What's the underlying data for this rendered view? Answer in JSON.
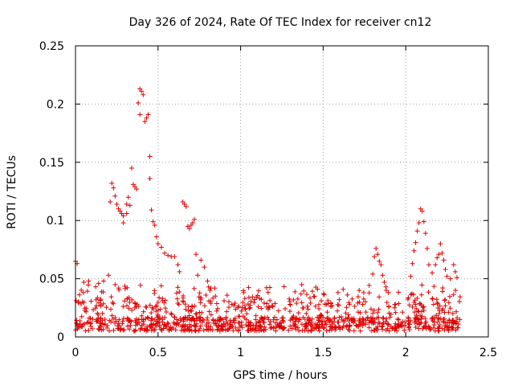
{
  "chart_data": {
    "type": "scatter",
    "title": "Day 326 of 2024, Rate Of TEC Index for receiver cn12",
    "xlabel": "GPS time / hours",
    "ylabel": "ROTI / TECUs",
    "xlim": [
      0,
      2.5
    ],
    "ylim": [
      0,
      0.25
    ],
    "xticks": [
      0,
      0.5,
      1,
      1.5,
      2,
      2.5
    ],
    "xtick_labels": [
      "0",
      "0.5",
      "1",
      "1.5",
      "2",
      "2.5"
    ],
    "yticks": [
      0,
      0.05,
      0.1,
      0.15,
      0.2,
      0.25
    ],
    "ytick_labels": [
      "0",
      "0.05",
      "0.1",
      "0.15",
      "0.2",
      "0.25"
    ],
    "grid": true,
    "marker": "+",
    "color": "#e00000",
    "series": [
      {
        "name": "roti",
        "x_range": [
          0,
          2.33
        ],
        "sample_count": 1050,
        "baseline_band": [
          0.005,
          0.035
        ],
        "points": [
          [
            0.0,
            0.065
          ],
          [
            0.01,
            0.063
          ],
          [
            0.05,
            0.047
          ],
          [
            0.08,
            0.048
          ],
          [
            0.14,
            0.046
          ],
          [
            0.17,
            0.048
          ],
          [
            0.2,
            0.053
          ],
          [
            0.24,
            0.045
          ],
          [
            0.21,
            0.116
          ],
          [
            0.22,
            0.132
          ],
          [
            0.23,
            0.128
          ],
          [
            0.24,
            0.121
          ],
          [
            0.25,
            0.114
          ],
          [
            0.26,
            0.11
          ],
          [
            0.27,
            0.108
          ],
          [
            0.28,
            0.106
          ],
          [
            0.29,
            0.104
          ],
          [
            0.29,
            0.098
          ],
          [
            0.31,
            0.106
          ],
          [
            0.31,
            0.114
          ],
          [
            0.32,
            0.12
          ],
          [
            0.33,
            0.113
          ],
          [
            0.34,
            0.145
          ],
          [
            0.35,
            0.131
          ],
          [
            0.36,
            0.129
          ],
          [
            0.37,
            0.127
          ],
          [
            0.38,
            0.201
          ],
          [
            0.39,
            0.191
          ],
          [
            0.39,
            0.213
          ],
          [
            0.4,
            0.211
          ],
          [
            0.41,
            0.208
          ],
          [
            0.42,
            0.185
          ],
          [
            0.43,
            0.188
          ],
          [
            0.44,
            0.191
          ],
          [
            0.45,
            0.155
          ],
          [
            0.45,
            0.136
          ],
          [
            0.46,
            0.109
          ],
          [
            0.47,
            0.099
          ],
          [
            0.48,
            0.096
          ],
          [
            0.49,
            0.086
          ],
          [
            0.5,
            0.08
          ],
          [
            0.52,
            0.077
          ],
          [
            0.54,
            0.072
          ],
          [
            0.56,
            0.07
          ],
          [
            0.58,
            0.069
          ],
          [
            0.6,
            0.069
          ],
          [
            0.62,
            0.062
          ],
          [
            0.63,
            0.056
          ],
          [
            0.65,
            0.116
          ],
          [
            0.66,
            0.114
          ],
          [
            0.67,
            0.112
          ],
          [
            0.68,
            0.095
          ],
          [
            0.69,
            0.093
          ],
          [
            0.7,
            0.096
          ],
          [
            0.71,
            0.098
          ],
          [
            0.72,
            0.101
          ],
          [
            0.73,
            0.071
          ],
          [
            0.74,
            0.053
          ],
          [
            0.76,
            0.066
          ],
          [
            0.78,
            0.06
          ],
          [
            0.8,
            0.048
          ],
          [
            0.82,
            0.042
          ],
          [
            1.8,
            0.054
          ],
          [
            1.81,
            0.069
          ],
          [
            1.82,
            0.076
          ],
          [
            1.83,
            0.071
          ],
          [
            1.84,
            0.065
          ],
          [
            1.85,
            0.062
          ],
          [
            1.86,
            0.053
          ],
          [
            1.87,
            0.047
          ],
          [
            1.88,
            0.043
          ],
          [
            2.03,
            0.052
          ],
          [
            2.04,
            0.063
          ],
          [
            2.05,
            0.074
          ],
          [
            2.06,
            0.081
          ],
          [
            2.07,
            0.091
          ],
          [
            2.08,
            0.098
          ],
          [
            2.09,
            0.11
          ],
          [
            2.1,
            0.108
          ],
          [
            2.11,
            0.099
          ],
          [
            2.12,
            0.089
          ],
          [
            2.13,
            0.076
          ],
          [
            2.14,
            0.062
          ],
          [
            2.16,
            0.055
          ],
          [
            2.18,
            0.062
          ],
          [
            2.19,
            0.068
          ],
          [
            2.2,
            0.071
          ],
          [
            2.21,
            0.08
          ],
          [
            2.22,
            0.072
          ],
          [
            2.23,
            0.066
          ],
          [
            2.24,
            0.058
          ],
          [
            2.25,
            0.052
          ],
          [
            2.27,
            0.05
          ],
          [
            2.29,
            0.062
          ],
          [
            2.3,
            0.056
          ],
          [
            2.31,
            0.051
          ]
        ]
      }
    ]
  }
}
